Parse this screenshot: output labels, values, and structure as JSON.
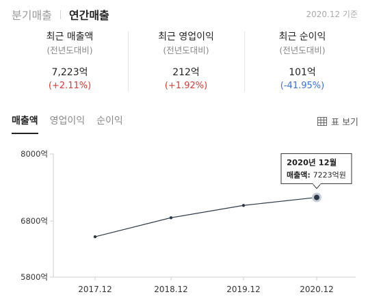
{
  "header": {
    "tabs": [
      {
        "label": "분기매출",
        "active": false
      },
      {
        "label": "연간매출",
        "active": true
      }
    ],
    "basis": "2020.12 기준"
  },
  "summary": [
    {
      "title": "최근 매출액",
      "sub": "(전년도대비)",
      "value": "7,223억",
      "change": "(+2.11%)",
      "direction": "up"
    },
    {
      "title": "최근 영업이익",
      "sub": "(전년도대비)",
      "value": "212억",
      "change": "(+1.92%)",
      "direction": "up"
    },
    {
      "title": "최근 순이익",
      "sub": "(전년도대비)",
      "value": "101억",
      "change": "(-41.95%)",
      "direction": "down"
    }
  ],
  "chart_tabs": [
    {
      "label": "매출액",
      "active": true
    },
    {
      "label": "영업이익",
      "active": false
    },
    {
      "label": "순이익",
      "active": false
    }
  ],
  "table_view": {
    "label": "표 보기",
    "icon": "table-icon"
  },
  "colors": {
    "line": "#2b3a4a",
    "up": "#e0372f",
    "down": "#3b6fe0"
  },
  "chart_data": {
    "type": "line",
    "categories": [
      "2017.12",
      "2018.12",
      "2019.12",
      "2020.12"
    ],
    "series": [
      {
        "name": "매출액",
        "values": [
          6520,
          6860,
          7080,
          7223
        ]
      }
    ],
    "ylim": [
      5800,
      8000
    ],
    "yticks": [
      5800,
      6800,
      8000
    ],
    "ytick_labels": [
      "5800억",
      "6800억",
      "8000억"
    ],
    "xlabel": "",
    "ylabel": "",
    "grid": false,
    "tooltip": {
      "title": "2020년 12월",
      "label": "매출액:",
      "value": "7223억원",
      "point_index": 3
    }
  }
}
